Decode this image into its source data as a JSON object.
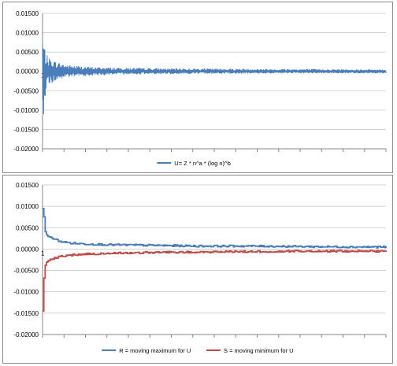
{
  "chart_data": [
    {
      "type": "line",
      "title": "",
      "xlabel": "",
      "ylabel": "",
      "x_start_label": "1",
      "ylim": [
        -0.02,
        0.015
      ],
      "yticks": [
        "0.01500",
        "0.01000",
        "0.00500",
        "0.00000",
        "-0.00500",
        "-0.01000",
        "-0.01500",
        "-0.02000"
      ],
      "grid": true,
      "legend_position": "bottom",
      "series": [
        {
          "name": "U= Z * n^a * (log n)^b",
          "color": "#4a7ebb",
          "envelope": {
            "x": [
              0,
              0.01,
              0.02,
              0.04,
              0.07,
              0.12,
              0.2,
              0.35,
              0.55,
              0.8,
              1.0
            ],
            "upper": [
              0.0095,
              0.0045,
              0.0035,
              0.0025,
              0.0018,
              0.0013,
              0.001,
              0.0008,
              0.0007,
              0.0006,
              0.0005
            ],
            "lower": [
              -0.0145,
              -0.0045,
              -0.0035,
              -0.0025,
              -0.0016,
              -0.0012,
              -0.0009,
              -0.0007,
              -0.0006,
              -0.0005,
              -0.0005
            ]
          }
        }
      ]
    },
    {
      "type": "line",
      "title": "",
      "xlabel": "",
      "ylabel": "",
      "x_start_label": "1",
      "ylim": [
        -0.02,
        0.015
      ],
      "yticks": [
        "0.01500",
        "0.01000",
        "0.00500",
        "0.00000",
        "-0.00500",
        "-0.01000",
        "-0.01500",
        "-0.02000"
      ],
      "grid": true,
      "legend_position": "bottom",
      "series": [
        {
          "name": "R = moving maximum for U",
          "color": "#4a7ebb",
          "x": [
            0,
            0.004,
            0.006,
            0.01,
            0.015,
            0.03,
            0.05,
            0.08,
            0.12,
            0.2,
            0.3,
            0.45,
            0.6,
            0.75,
            0.9,
            1.0
          ],
          "values": [
            0.0095,
            0.0075,
            0.0045,
            0.0035,
            0.003,
            0.0025,
            0.0018,
            0.0014,
            0.0012,
            0.001,
            0.0009,
            0.0007,
            0.0007,
            0.0006,
            0.0005,
            0.0005
          ]
        },
        {
          "name": "S = moving minimum for U",
          "color": "#be4b48",
          "x": [
            0,
            0.004,
            0.006,
            0.01,
            0.015,
            0.03,
            0.05,
            0.08,
            0.12,
            0.2,
            0.3,
            0.45,
            0.6,
            0.75,
            0.9,
            1.0
          ],
          "values": [
            -0.0145,
            -0.0065,
            -0.0042,
            -0.0032,
            -0.0028,
            -0.0022,
            -0.0018,
            -0.0014,
            -0.0012,
            -0.001,
            -0.0008,
            -0.0007,
            -0.0006,
            -0.0005,
            -0.0005,
            -0.0005
          ]
        }
      ]
    }
  ]
}
